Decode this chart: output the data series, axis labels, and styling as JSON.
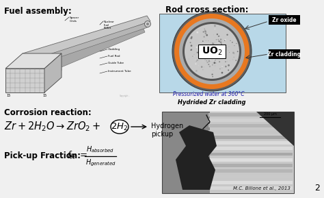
{
  "background_color": "#f0f0f0",
  "fuel_assembly_label": "Fuel assembly:",
  "rod_cross_section_label": "Rod cross section:",
  "corrosion_label": "Corrosion reaction:",
  "pickup_label": "Pick-up Fraction:",
  "zr_oxide_label": "Zr oxide",
  "zr_cladding_label": "Zr cladding",
  "uo2_label": "UO$_2$",
  "water_label": "Pressurized water at 360°C",
  "hydrided_label": "Hydrided Zr cladding",
  "hydrogen_pickup_label": "Hydrogen\npickup",
  "citation_label": "M.C. Billone et al., 2013",
  "page_num": "2",
  "cross_section_bg": "#b8d8e8",
  "oxide_color": "#e87820",
  "italic_water_color": "#1a1aaa"
}
